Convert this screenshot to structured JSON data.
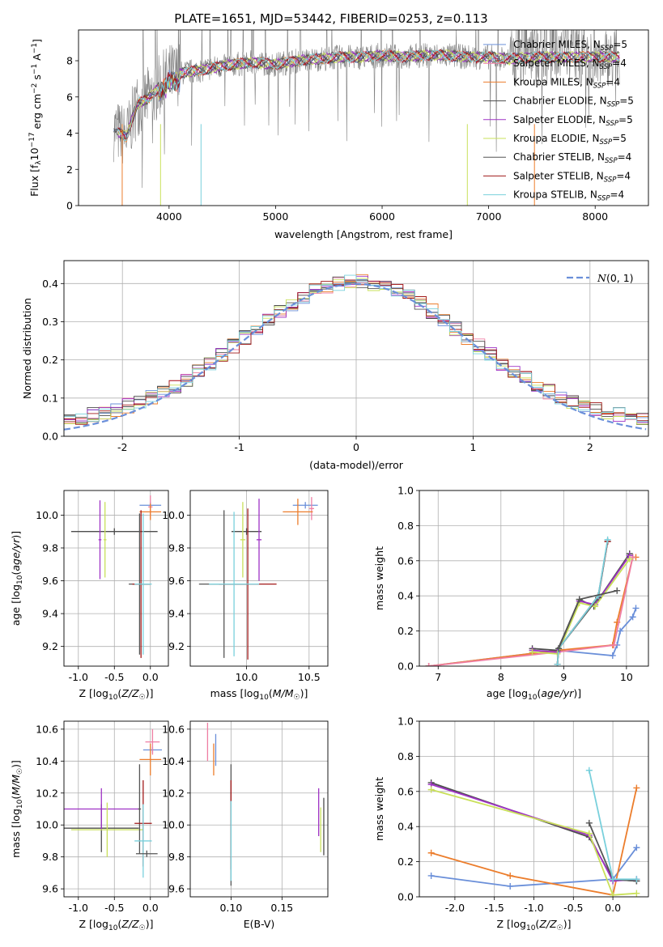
{
  "figure_title": "PLATE=1651, MJD=53442, FIBERID=0253, z=0.113",
  "model_colors": {
    "Chabrier MILES": "#6a8fd9",
    "Salpeter MILES": "#ef7ea3",
    "Kroupa MILES": "#ec7d2c",
    "Chabrier ELODIE": "#4d4d4d",
    "Salpeter ELODIE": "#9f33c5",
    "Kroupa ELODIE": "#c9e05a",
    "Chabrier STELIB": "#555555",
    "Salpeter STELIB": "#a11818",
    "Kroupa STELIB": "#79d0dc"
  },
  "chart_data": [
    {
      "id": "spectrum",
      "type": "line",
      "title": "PLATE=1651, MJD=53442, FIBERID=0253, z=0.113",
      "xlabel": "wavelength [Angstrom, rest frame]",
      "ylabel": "Flux [f_λ 10^-17 erg cm^-2 s^-1 A^-1]",
      "xlim": [
        3150,
        8500
      ],
      "ylim": [
        0,
        9.7
      ],
      "xticks": [
        4000,
        5000,
        6000,
        7000,
        8000
      ],
      "yticks": [
        0,
        2,
        4,
        6,
        8
      ],
      "grid": false,
      "legend_position": "upper-right",
      "legend": [
        "Chabrier MILES, N_SSP=5",
        "Salpeter MILES, N_SSP=4",
        "Kroupa MILES, N_SSP=4",
        "Chabrier ELODIE, N_SSP=5",
        "Salpeter ELODIE, N_SSP=5",
        "Kroupa ELODIE, N_SSP=5",
        "Chabrier STELIB, N_SSP=4",
        "Salpeter STELIB, N_SSP=4",
        "Kroupa STELIB, N_SSP=4"
      ],
      "continuum": {
        "x": [
          3480,
          3600,
          3700,
          3800,
          3900,
          4000,
          4200,
          4400,
          4600,
          4800,
          5000,
          5200,
          5400,
          5600,
          5800,
          6000,
          6200,
          6400,
          6600,
          6800,
          7000,
          7200,
          7400
        ],
        "y": [
          4.2,
          3.8,
          5.6,
          5.9,
          6.5,
          7.2,
          7.4,
          7.6,
          7.8,
          7.9,
          7.8,
          8.0,
          8.1,
          8.2,
          8.2,
          8.3,
          8.2,
          8.3,
          8.3,
          8.2,
          8.2,
          8.1,
          8.2
        ]
      }
    },
    {
      "id": "residuals",
      "type": "line",
      "xlabel": "(data-model)/error",
      "ylabel": "Normed distribution",
      "xlim": [
        -2.5,
        2.5
      ],
      "ylim": [
        0,
        0.46
      ],
      "xticks": [
        -2,
        -1,
        0,
        1,
        2
      ],
      "yticks": [
        0.0,
        0.1,
        0.2,
        0.3,
        0.4
      ],
      "grid": true,
      "legend_position": "upper-right",
      "legend": [
        "N(0,1)"
      ],
      "reference_curve": "gaussian mu=0 sigma=1"
    },
    {
      "id": "age_vs_Z",
      "type": "scatter",
      "xlabel": "Z [log10(Z/Z☉)]",
      "ylabel": "age [log10(age/yr)]",
      "xlim": [
        -1.2,
        0.25
      ],
      "ylim": [
        9.08,
        10.15
      ],
      "xticks": [
        -1.0,
        -0.5,
        0.0
      ],
      "yticks": [
        9.2,
        9.4,
        9.6,
        9.8,
        10.0
      ],
      "grid": true,
      "points": [
        {
          "model": "Chabrier MILES",
          "x": 0.0,
          "y": 10.06,
          "xerr": 0.15,
          "yerr": 0.02
        },
        {
          "model": "Salpeter MILES",
          "x": 0.0,
          "y": 10.05,
          "xerr": 0.03,
          "yerr": 0.07
        },
        {
          "model": "Kroupa MILES",
          "x": 0.0,
          "y": 10.02,
          "xerr": 0.15,
          "yerr": 0.05
        },
        {
          "model": "Chabrier ELODIE",
          "x": -0.5,
          "y": 9.9,
          "xerr": 0.6,
          "yerr": 0.02
        },
        {
          "model": "Salpeter ELODIE",
          "x": -0.7,
          "y": 9.85,
          "xerr": 0.02,
          "yerr": 0.24
        },
        {
          "model": "Kroupa ELODIE",
          "x": -0.63,
          "y": 9.85,
          "xerr": 0.02,
          "yerr": 0.23
        },
        {
          "model": "Chabrier STELIB",
          "x": -0.15,
          "y": 9.58,
          "xerr": 0.15,
          "yerr": 0.43
        },
        {
          "model": "Salpeter STELIB",
          "x": -0.13,
          "y": 9.58,
          "xerr": 0.12,
          "yerr": 0.45
        },
        {
          "model": "Kroupa STELIB",
          "x": -0.1,
          "y": 9.58,
          "xerr": 0.12,
          "yerr": 0.43
        }
      ]
    },
    {
      "id": "age_vs_mass",
      "type": "scatter",
      "xlabel": "mass [log10(M/M☉)]",
      "ylabel": "",
      "xlim": [
        9.55,
        10.65
      ],
      "ylim": [
        9.08,
        10.15
      ],
      "xticks": [
        10.0,
        10.5
      ],
      "yticks": [
        9.2,
        9.4,
        9.6,
        9.8,
        10.0
      ],
      "grid": true,
      "points": [
        {
          "model": "Chabrier MILES",
          "x": 10.47,
          "y": 10.06,
          "xerr": 0.1,
          "yerr": 0.02
        },
        {
          "model": "Salpeter MILES",
          "x": 10.52,
          "y": 10.04,
          "xerr": 0.02,
          "yerr": 0.07
        },
        {
          "model": "Kroupa MILES",
          "x": 10.41,
          "y": 10.02,
          "xerr": 0.12,
          "yerr": 0.08
        },
        {
          "model": "Chabrier ELODIE",
          "x": 10.0,
          "y": 9.9,
          "xerr": 0.12,
          "yerr": 0.02
        },
        {
          "model": "Salpeter ELODIE",
          "x": 10.1,
          "y": 9.85,
          "xerr": 0.02,
          "yerr": 0.25
        },
        {
          "model": "Kroupa ELODIE",
          "x": 9.97,
          "y": 9.85,
          "xerr": 0.02,
          "yerr": 0.23
        },
        {
          "model": "Chabrier STELIB",
          "x": 9.82,
          "y": 9.58,
          "xerr": 0.2,
          "yerr": 0.45
        },
        {
          "model": "Salpeter STELIB",
          "x": 10.01,
          "y": 9.58,
          "xerr": 0.23,
          "yerr": 0.46
        },
        {
          "model": "Kroupa STELIB",
          "x": 9.9,
          "y": 9.58,
          "xerr": 0.2,
          "yerr": 0.44
        }
      ]
    },
    {
      "id": "weight_vs_age",
      "type": "line",
      "xlabel": "age [log10(age/yr)]",
      "ylabel": "mass weight",
      "xlim": [
        6.7,
        10.35
      ],
      "ylim": [
        0,
        1
      ],
      "xticks": [
        7,
        8,
        9,
        10
      ],
      "yticks": [
        0.0,
        0.2,
        0.4,
        0.6,
        0.8,
        1.0
      ],
      "grid": true,
      "series": [
        {
          "model": "Chabrier MILES",
          "x": [
            6.85,
            8.9,
            9.78,
            9.85,
            9.9,
            10.1,
            10.15
          ],
          "y": [
            0.0,
            0.09,
            0.06,
            0.12,
            0.2,
            0.28,
            0.33
          ]
        },
        {
          "model": "Kroupa MILES",
          "x": [
            6.85,
            8.9,
            9.78,
            9.85,
            10.1,
            10.15
          ],
          "y": [
            0.0,
            0.09,
            0.12,
            0.25,
            0.62,
            0.62
          ]
        },
        {
          "model": "Salpeter MILES",
          "x": [
            6.85,
            8.9,
            9.8,
            10.1
          ],
          "y": [
            0.0,
            0.08,
            0.12,
            0.62
          ]
        },
        {
          "model": "Chabrier ELODIE",
          "x": [
            8.5,
            8.9,
            9.25,
            9.48,
            10.05
          ],
          "y": [
            0.1,
            0.09,
            0.38,
            0.34,
            0.64
          ]
        },
        {
          "model": "Salpeter ELODIE",
          "x": [
            8.5,
            8.9,
            9.25,
            9.5,
            10.05
          ],
          "y": [
            0.09,
            0.08,
            0.37,
            0.35,
            0.63
          ]
        },
        {
          "model": "Kroupa ELODIE",
          "x": [
            8.5,
            8.9,
            9.25,
            9.5,
            10.05
          ],
          "y": [
            0.08,
            0.07,
            0.36,
            0.34,
            0.61
          ]
        },
        {
          "model": "Chabrier STELIB",
          "x": [
            8.9,
            8.92,
            9.55,
            9.7
          ],
          "y": [
            0.01,
            0.1,
            0.39,
            0.71
          ]
        },
        {
          "model": "Salpeter STELIB",
          "x": [
            8.9,
            8.92,
            9.55,
            9.7
          ],
          "y": [
            0.01,
            0.1,
            0.4,
            0.71
          ]
        },
        {
          "model": "Kroupa STELIB",
          "x": [
            8.9,
            8.92,
            9.55,
            9.7
          ],
          "y": [
            0.01,
            0.1,
            0.4,
            0.72
          ]
        },
        {
          "model": "Chabrier STELIB",
          "x": [
            8.92,
            9.25,
            9.85
          ],
          "y": [
            0.1,
            0.38,
            0.43
          ]
        }
      ]
    },
    {
      "id": "mass_vs_Z",
      "type": "scatter",
      "xlabel": "Z [log10(Z/Z☉)]",
      "ylabel": "mass [log10(M/M☉)]",
      "xlim": [
        -1.2,
        0.25
      ],
      "ylim": [
        9.55,
        10.65
      ],
      "xticks": [
        -1.0,
        -0.5,
        0.0
      ],
      "yticks": [
        9.6,
        9.8,
        10.0,
        10.2,
        10.4,
        10.6
      ],
      "grid": true,
      "points": [
        {
          "model": "Chabrier MILES",
          "x": 0.03,
          "y": 10.47,
          "xerr": 0.13,
          "yerr": 0.02
        },
        {
          "model": "Salpeter MILES",
          "x": 0.03,
          "y": 10.52,
          "xerr": 0.1,
          "yerr": 0.08
        },
        {
          "model": "Kroupa MILES",
          "x": 0.0,
          "y": 10.41,
          "xerr": 0.15,
          "yerr": 0.1
        },
        {
          "model": "Chabrier ELODIE",
          "x": -0.68,
          "y": 9.98,
          "xerr": 0.52,
          "yerr": 0.15
        },
        {
          "model": "Salpeter ELODIE",
          "x": -0.68,
          "y": 10.1,
          "xerr": 0.52,
          "yerr": 0.13
        },
        {
          "model": "Kroupa ELODIE",
          "x": -0.6,
          "y": 9.97,
          "xerr": 0.5,
          "yerr": 0.17
        },
        {
          "model": "Chabrier STELIB",
          "x": -0.15,
          "y": 10.1,
          "xerr": 0.02,
          "yerr": 0.28
        },
        {
          "model": "Salpeter STELIB",
          "x": -0.1,
          "y": 10.01,
          "xerr": 0.12,
          "yerr": 0.27
        },
        {
          "model": "Kroupa STELIB",
          "x": -0.1,
          "y": 9.9,
          "xerr": 0.12,
          "yerr": 0.23
        },
        {
          "model": "Chabrier STELIB",
          "x": -0.05,
          "y": 9.82,
          "xerr": 0.15,
          "yerr": 0.02
        }
      ]
    },
    {
      "id": "mass_vs_EBV",
      "type": "scatter",
      "xlabel": "E(B-V)",
      "ylabel": "",
      "xlim": [
        0.06,
        0.195
      ],
      "ylim": [
        9.55,
        10.65
      ],
      "xticks": [
        0.1,
        0.15
      ],
      "yticks": [
        9.6,
        9.8,
        10.0,
        10.2,
        10.4,
        10.6
      ],
      "grid": true,
      "points": [
        {
          "model": "Chabrier MILES",
          "x": 0.085,
          "y": 10.47,
          "yerr": 0.1
        },
        {
          "model": "Salpeter MILES",
          "x": 0.077,
          "y": 10.52,
          "yerr": 0.12
        },
        {
          "model": "Kroupa MILES",
          "x": 0.083,
          "y": 10.41,
          "yerr": 0.1
        },
        {
          "model": "Chabrier ELODIE",
          "x": 0.191,
          "y": 9.99,
          "yerr": 0.18
        },
        {
          "model": "Salpeter ELODIE",
          "x": 0.186,
          "y": 10.08,
          "yerr": 0.15
        },
        {
          "model": "Kroupa ELODIE",
          "x": 0.188,
          "y": 9.97,
          "yerr": 0.14
        },
        {
          "model": "Chabrier STELIB",
          "x": 0.1,
          "y": 10.0,
          "yerr": 0.38
        },
        {
          "model": "Salpeter STELIB",
          "x": 0.1,
          "y": 10.0,
          "yerr": 0.28
        },
        {
          "model": "Kroupa STELIB",
          "x": 0.1,
          "y": 9.9,
          "yerr": 0.25
        }
      ]
    },
    {
      "id": "weight_vs_Z",
      "type": "line",
      "xlabel": "Z [log10(Z/Z☉)]",
      "ylabel": "mass weight",
      "xlim": [
        -2.45,
        0.45
      ],
      "ylim": [
        0,
        1
      ],
      "xticks": [
        -2.0,
        -1.5,
        -1.0,
        -0.5,
        0.0
      ],
      "yticks": [
        0.0,
        0.2,
        0.4,
        0.6,
        0.8,
        1.0
      ],
      "grid": true,
      "series": [
        {
          "model": "Chabrier MILES",
          "x": [
            -2.3,
            -1.3,
            0.0,
            0.3
          ],
          "y": [
            0.12,
            0.06,
            0.1,
            0.28
          ]
        },
        {
          "model": "Kroupa MILES",
          "x": [
            -2.3,
            -1.3,
            0.0,
            0.3
          ],
          "y": [
            0.25,
            0.12,
            0.01,
            0.62
          ]
        },
        {
          "model": "Chabrier ELODIE",
          "x": [
            -2.3,
            -0.3,
            0.0,
            0.3
          ],
          "y": [
            0.65,
            0.34,
            0.1,
            0.09
          ]
        },
        {
          "model": "Salpeter ELODIE",
          "x": [
            -2.3,
            -0.3,
            0.0,
            0.3
          ],
          "y": [
            0.64,
            0.35,
            0.09,
            0.1
          ]
        },
        {
          "model": "Kroupa ELODIE",
          "x": [
            -2.3,
            -0.3,
            0.0,
            0.3
          ],
          "y": [
            0.61,
            0.36,
            0.01,
            0.02
          ]
        },
        {
          "model": "Chabrier STELIB",
          "x": [
            -0.3,
            0.0,
            0.3
          ],
          "y": [
            0.42,
            0.1,
            0.09
          ]
        },
        {
          "model": "Kroupa STELIB",
          "x": [
            -0.3,
            0.0,
            0.3
          ],
          "y": [
            0.72,
            0.1,
            0.1
          ]
        }
      ]
    }
  ]
}
